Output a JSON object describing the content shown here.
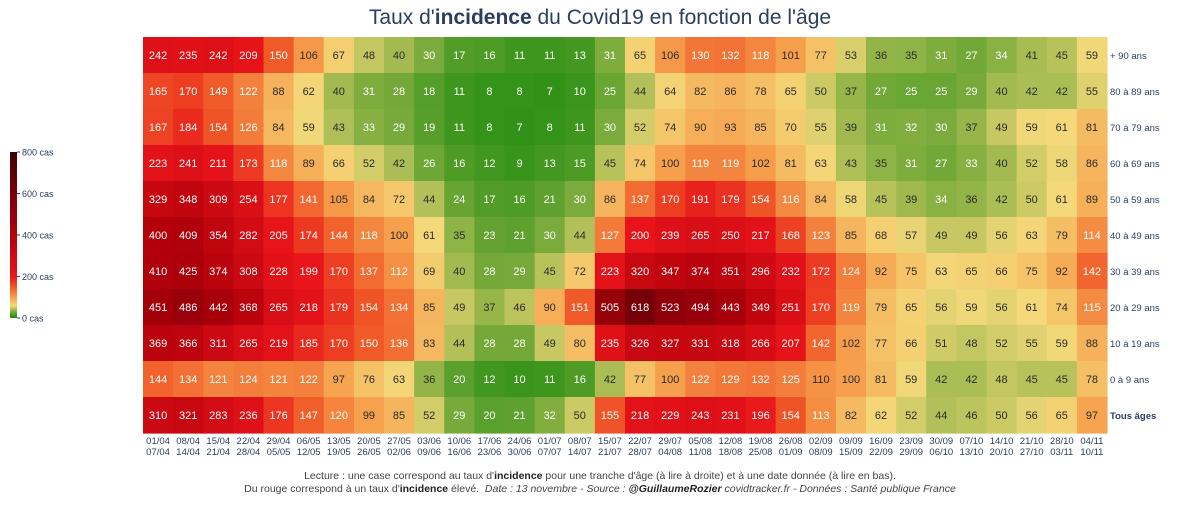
{
  "title": {
    "prefix": "Taux d'",
    "bold": "incidence",
    "suffix": " du Covid19 en fonction de l'âge"
  },
  "footer": {
    "line1_prefix": "Lecture : une case correspond au taux d'",
    "line1_bold": "incidence",
    "line1_suffix": " pour une tranche d'âge (à lire à droite) et à une date donnée (à lire en bas).",
    "line2_prefix": "Du rouge correspond à un taux d'",
    "line2_bold": "incidence",
    "line2_suffix": " élevé.",
    "line2_italic_1": "Date : 13 novembre - Source : ",
    "line2_bold_italic": "@GuillaumeRozier",
    "line2_italic_2": " covidtracker.fr - Données : Santé publique France"
  },
  "chart_data": {
    "type": "heatmap",
    "x_labels": [
      [
        "01/04",
        "07/04"
      ],
      [
        "08/04",
        "14/04"
      ],
      [
        "15/04",
        "21/04"
      ],
      [
        "22/04",
        "28/04"
      ],
      [
        "29/04",
        "05/05"
      ],
      [
        "06/05",
        "12/05"
      ],
      [
        "13/05",
        "19/05"
      ],
      [
        "20/05",
        "26/05"
      ],
      [
        "27/05",
        "02/06"
      ],
      [
        "03/06",
        "09/06"
      ],
      [
        "10/06",
        "16/06"
      ],
      [
        "17/06",
        "23/06"
      ],
      [
        "24/06",
        "30/06"
      ],
      [
        "01/07",
        "07/07"
      ],
      [
        "08/07",
        "14/07"
      ],
      [
        "15/07",
        "21/07"
      ],
      [
        "22/07",
        "28/07"
      ],
      [
        "29/07",
        "04/08"
      ],
      [
        "05/08",
        "11/08"
      ],
      [
        "12/08",
        "18/08"
      ],
      [
        "19/08",
        "25/08"
      ],
      [
        "26/08",
        "01/09"
      ],
      [
        "02/09",
        "08/09"
      ],
      [
        "09/09",
        "15/09"
      ],
      [
        "16/09",
        "22/09"
      ],
      [
        "23/09",
        "29/09"
      ],
      [
        "30/09",
        "06/10"
      ],
      [
        "07/10",
        "13/10"
      ],
      [
        "14/10",
        "20/10"
      ],
      [
        "21/10",
        "27/10"
      ],
      [
        "28/10",
        "03/11"
      ],
      [
        "04/11",
        "10/11"
      ]
    ],
    "y_labels": [
      "+ 90 ans",
      "80 à 89 ans",
      "70 à 79 ans",
      "60 à 69 ans",
      "50 à 59 ans",
      "40 à 49 ans",
      "30 à 39 ans",
      "20 à 29 ans",
      "10 à 19 ans",
      "0 à 9 ans",
      "Tous âges"
    ],
    "y_bold": [
      false,
      false,
      false,
      false,
      false,
      false,
      false,
      false,
      false,
      false,
      true
    ],
    "values": [
      [
        242,
        235,
        242,
        209,
        150,
        106,
        67,
        48,
        40,
        30,
        17,
        16,
        11,
        11,
        13,
        31,
        65,
        106,
        130,
        132,
        118,
        101,
        77,
        53,
        36,
        35,
        31,
        27,
        34,
        41,
        45,
        59
      ],
      [
        165,
        170,
        149,
        122,
        88,
        62,
        40,
        31,
        28,
        18,
        11,
        8,
        8,
        7,
        10,
        25,
        44,
        64,
        82,
        86,
        78,
        65,
        50,
        37,
        27,
        25,
        25,
        29,
        40,
        42,
        42,
        55
      ],
      [
        167,
        184,
        154,
        126,
        84,
        59,
        43,
        33,
        29,
        19,
        11,
        8,
        7,
        8,
        11,
        30,
        52,
        74,
        90,
        93,
        85,
        70,
        55,
        39,
        31,
        32,
        30,
        37,
        49,
        59,
        61,
        81
      ],
      [
        223,
        241,
        211,
        173,
        118,
        89,
        66,
        52,
        42,
        26,
        16,
        12,
        9,
        13,
        15,
        45,
        74,
        100,
        119,
        119,
        102,
        81,
        63,
        43,
        35,
        31,
        27,
        33,
        40,
        52,
        58,
        86
      ],
      [
        329,
        348,
        309,
        254,
        177,
        141,
        105,
        84,
        72,
        44,
        24,
        17,
        16,
        21,
        30,
        86,
        137,
        170,
        191,
        179,
        154,
        116,
        84,
        58,
        45,
        39,
        34,
        36,
        42,
        50,
        61,
        89
      ],
      [
        400,
        409,
        354,
        282,
        205,
        174,
        144,
        118,
        100,
        61,
        35,
        23,
        21,
        30,
        44,
        127,
        200,
        239,
        265,
        250,
        217,
        168,
        123,
        85,
        68,
        57,
        49,
        49,
        56,
        63,
        79,
        114
      ],
      [
        410,
        425,
        374,
        308,
        228,
        199,
        170,
        137,
        112,
        69,
        40,
        28,
        29,
        45,
        72,
        223,
        320,
        347,
        374,
        351,
        296,
        232,
        172,
        124,
        92,
        75,
        63,
        65,
        66,
        75,
        92,
        142
      ],
      [
        451,
        486,
        442,
        368,
        265,
        218,
        179,
        154,
        134,
        85,
        49,
        37,
        46,
        90,
        151,
        505,
        618,
        523,
        494,
        443,
        349,
        251,
        170,
        119,
        79,
        65,
        56,
        59,
        56,
        61,
        74,
        115
      ],
      [
        369,
        366,
        311,
        265,
        219,
        185,
        170,
        150,
        136,
        83,
        44,
        28,
        28,
        49,
        80,
        235,
        326,
        327,
        331,
        318,
        266,
        207,
        142,
        102,
        77,
        66,
        51,
        48,
        52,
        55,
        59,
        88
      ],
      [
        144,
        134,
        121,
        124,
        121,
        122,
        97,
        76,
        63,
        36,
        20,
        12,
        10,
        11,
        16,
        42,
        77,
        100,
        122,
        129,
        132,
        125,
        110,
        100,
        81,
        59,
        42,
        42,
        48,
        45,
        45,
        78
      ],
      [
        310,
        321,
        283,
        236,
        176,
        147,
        120,
        99,
        85,
        52,
        29,
        20,
        21,
        32,
        50,
        155,
        218,
        229,
        243,
        231,
        196,
        154,
        113,
        82,
        62,
        52,
        44,
        46,
        50,
        56,
        65,
        97
      ]
    ],
    "colorscale": [
      [
        0,
        "#1b8a0c"
      ],
      [
        30,
        "#7aab3c"
      ],
      [
        60,
        "#f4d97a"
      ],
      [
        100,
        "#f6a04d"
      ],
      [
        150,
        "#f05a28"
      ],
      [
        200,
        "#e8141a"
      ],
      [
        400,
        "#b3000b"
      ],
      [
        600,
        "#7a0008"
      ],
      [
        800,
        "#3d0000"
      ]
    ],
    "colorbar": {
      "ticks": [
        800,
        600,
        400,
        200,
        0
      ],
      "labels": [
        "800 cas",
        "600 cas",
        "400 cas",
        "200 cas",
        "0 cas"
      ],
      "range": [
        0,
        800
      ]
    }
  }
}
